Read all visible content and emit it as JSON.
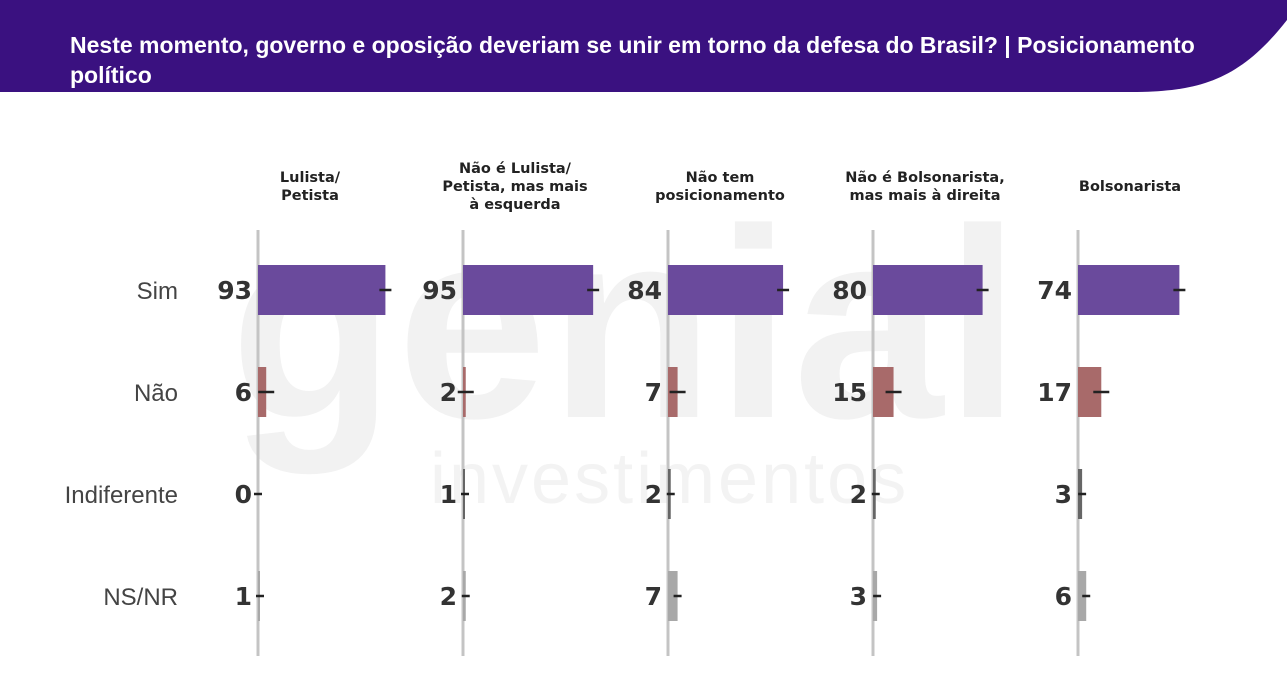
{
  "title": "Neste momento, governo e oposição deveriam se unir em torno da defesa do Brasil? | Posicionamento político",
  "colors": {
    "header_bg": "#3a1180",
    "header_text": "#ffffff",
    "sim": "#6a4a9c",
    "nao": "#a86a6a",
    "indiferente": "#666666",
    "nsnr": "#a8a8a8",
    "axis": "#c4c4c4",
    "error_bar": "#222222"
  },
  "watermark": {
    "word": "genial",
    "sub": "investimentos"
  },
  "chart_data": {
    "type": "bar",
    "orientation": "horizontal",
    "panels": [
      {
        "label": [
          "Lulista/",
          "Petista"
        ]
      },
      {
        "label": [
          "Não é Lulista/",
          "Petista, mas mais",
          "à esquerda"
        ]
      },
      {
        "label": [
          "Não tem",
          "posicionamento"
        ]
      },
      {
        "label": [
          "Não é Bolsonarista,",
          "mas mais à direita"
        ]
      },
      {
        "label": [
          "Bolsonarista"
        ]
      }
    ],
    "categories": [
      "Sim",
      "Não",
      "Indiferente",
      "NS/NR"
    ],
    "values": [
      [
        93,
        6,
        0,
        1
      ],
      [
        95,
        2,
        1,
        2
      ],
      [
        84,
        7,
        2,
        7
      ],
      [
        80,
        15,
        2,
        3
      ],
      [
        74,
        17,
        3,
        6
      ]
    ],
    "xlim": [
      0,
      100
    ],
    "grid": false,
    "legend": "none"
  }
}
